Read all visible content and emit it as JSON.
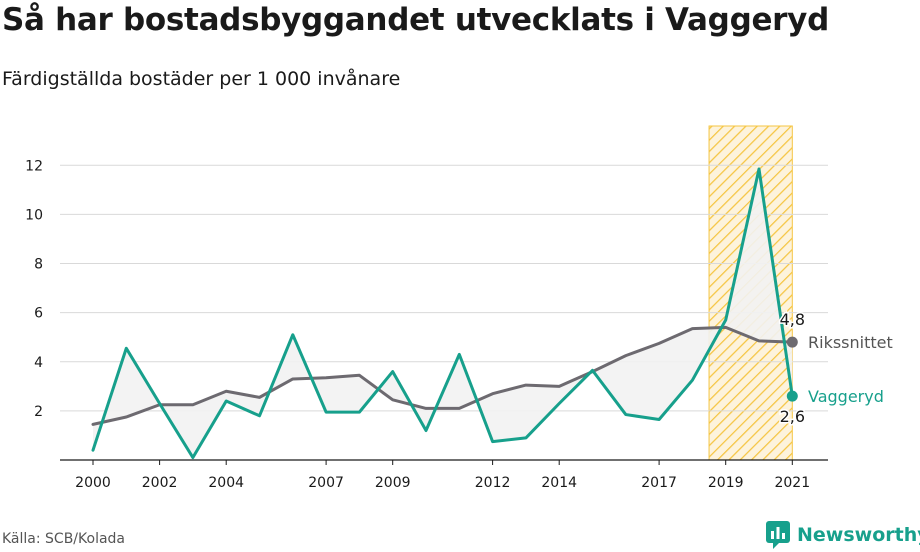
{
  "title": "Så har bostadsbyggandet utvecklats i Vaggeryd",
  "subtitle": "Färdigställda bostäder per 1 000 invånare",
  "source": "Källa: SCB/Kolada",
  "brand": {
    "name": "Newsworthy",
    "icon": "newsworthy-logo-icon"
  },
  "colors": {
    "national": "#6d6a70",
    "municipality": "#17a08c",
    "highlight": "#f5c542",
    "grid": "#d9d9d9",
    "fill": "#f2f2f2"
  },
  "chart_data": {
    "type": "line",
    "title": "Så har bostadsbyggandet utvecklats i Vaggeryd",
    "subtitle": "Färdigställda bostäder per 1 000 invånare",
    "xlabel": "",
    "ylabel": "",
    "x": [
      2000,
      2001,
      2002,
      2003,
      2004,
      2005,
      2006,
      2007,
      2008,
      2009,
      2010,
      2011,
      2012,
      2013,
      2014,
      2015,
      2016,
      2017,
      2018,
      2019,
      2020,
      2021
    ],
    "x_tick_labels": [
      "2000",
      "2002",
      "2004",
      "2007",
      "2009",
      "2012",
      "2014",
      "2017",
      "2019",
      "2021"
    ],
    "x_ticks": [
      2000,
      2002,
      2004,
      2007,
      2009,
      2012,
      2014,
      2017,
      2019,
      2021
    ],
    "y_ticks": [
      2,
      4,
      6,
      8,
      10,
      12
    ],
    "y_tick_labels": [
      "2",
      "4",
      "6",
      "8",
      "10",
      "12"
    ],
    "xlim": [
      1999,
      2022
    ],
    "ylim": [
      0,
      13.6
    ],
    "grid": "horizontal",
    "highlight_range": [
      2019,
      2021
    ],
    "series": [
      {
        "name": "Rikssnittet",
        "color": "#6d6a70",
        "values": [
          1.45,
          1.75,
          2.25,
          2.25,
          2.8,
          2.55,
          3.3,
          3.35,
          3.45,
          2.45,
          2.1,
          2.1,
          2.7,
          3.05,
          3.0,
          3.6,
          4.25,
          4.75,
          5.35,
          5.4,
          4.85,
          4.8
        ],
        "end_label": "4,8"
      },
      {
        "name": "Vaggeryd",
        "color": "#17a08c",
        "values": [
          0.4,
          4.55,
          2.3,
          0.1,
          2.4,
          1.8,
          5.1,
          1.95,
          1.95,
          3.6,
          1.2,
          4.3,
          0.75,
          0.9,
          2.3,
          3.65,
          1.85,
          1.65,
          3.25,
          5.7,
          11.85,
          2.6
        ],
        "end_label": "2,6"
      }
    ]
  }
}
